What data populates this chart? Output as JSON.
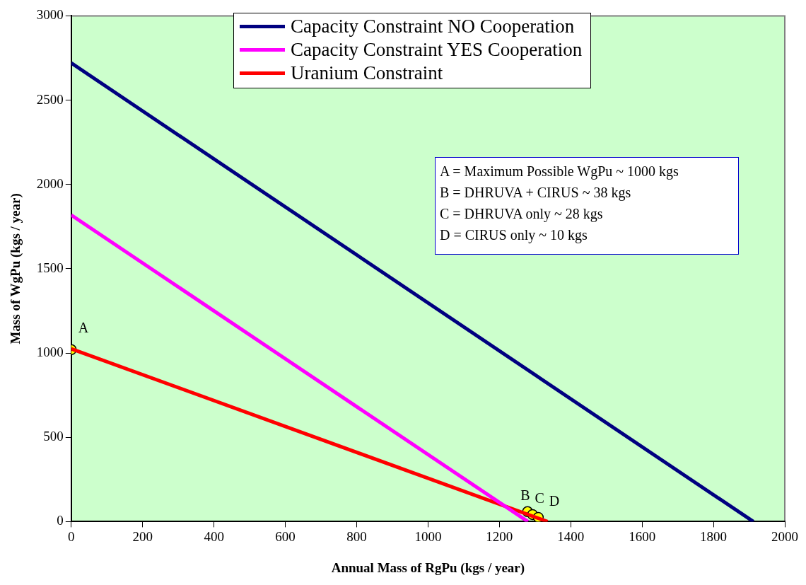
{
  "chart_data": {
    "type": "line",
    "xlabel": "Annual Mass of RgPu (kgs / year)",
    "ylabel": "Mass of WgPu (kgs / year)",
    "xlim": [
      0,
      2000
    ],
    "xticks": [
      0,
      200,
      400,
      600,
      800,
      1000,
      1200,
      1400,
      1600,
      1800,
      2000
    ],
    "ylim": [
      0,
      3000
    ],
    "yticks": [
      0,
      500,
      1000,
      1500,
      2000,
      2500,
      3000
    ],
    "grid": false,
    "legend": "top",
    "marker": "none",
    "line_style": "solid",
    "series": [
      {
        "name": "Capacity Constraint NO Cooperation",
        "color": "#000080",
        "x": [
          0,
          1912
        ],
        "values": [
          2720,
          0
        ]
      },
      {
        "name": "Capacity Constraint YES Cooperation",
        "color": "#ff00ff",
        "x": [
          0,
          1280
        ],
        "values": [
          1818,
          0
        ]
      },
      {
        "name": "Uranium Constraint",
        "color": "#ff0000",
        "x": [
          0,
          1335
        ],
        "values": [
          1025,
          0
        ]
      },
      {
        "color": "#ffff00",
        "type": "scatter",
        "marker": "circle",
        "x": [
          0,
          1279,
          1293,
          1309
        ],
        "values": [
          1020,
          59,
          42,
          25
        ]
      }
    ],
    "annotations": [
      {
        "text": "A",
        "x": 0,
        "y": 1020
      },
      {
        "text": "B",
        "x": 1279,
        "y": 59
      },
      {
        "text": "C",
        "x": 1293,
        "y": 42
      },
      {
        "text": "D",
        "x": 1309,
        "y": 25
      },
      "A = Maximum Possible WgPu ~ 1000 kgs",
      "B = DHRUVA + CIRUS ~ 38 kgs",
      "C = DHRUVA only ~ 28 kgs",
      "D = CIRUS only ~ 10 kgs"
    ]
  }
}
